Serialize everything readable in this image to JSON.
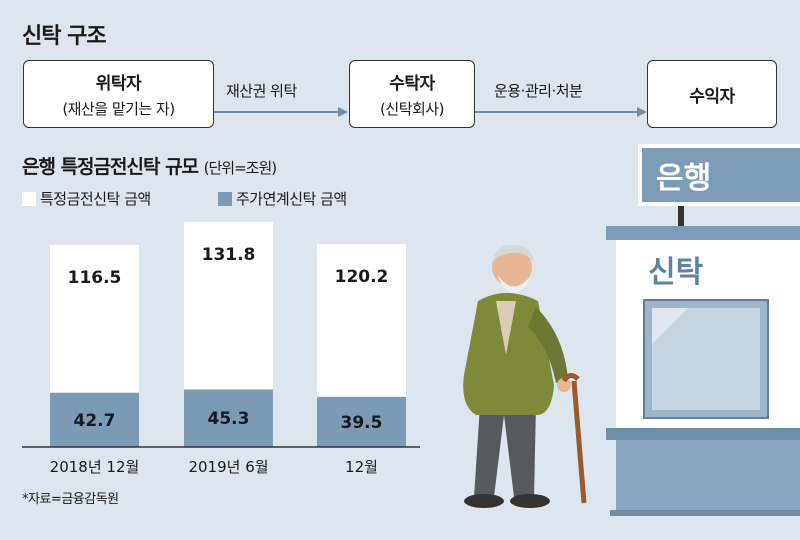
{
  "title": "신탁 구조",
  "flow": {
    "boxes": [
      {
        "main": "위탁자",
        "sub": "(재산을 맡기는 자)"
      },
      {
        "main": "수탁자",
        "sub": "(신탁회사)"
      },
      {
        "main": "수익자",
        "sub": ""
      }
    ],
    "arrows": [
      "재산권 위탁",
      "운용·관리·처분"
    ]
  },
  "chart_title": "은행 특정금전신탁 규모",
  "chart_unit": "(단위=조원)",
  "legend": [
    {
      "label": "특정금전신탁 금액",
      "color": "#ffffff"
    },
    {
      "label": "주가연계신탁 금액",
      "color": "#7b9ab5"
    }
  ],
  "chart_data": {
    "type": "bar",
    "stacked": true,
    "categories": [
      "2018년 12월",
      "2019년 6월",
      "12월"
    ],
    "series": [
      {
        "name": "주가연계신탁 금액",
        "values": [
          42.7,
          45.3,
          39.5
        ],
        "color": "#7b9ab5"
      },
      {
        "name": "특정금전신탁 금액",
        "values": [
          116.5,
          131.8,
          120.2
        ],
        "color": "#ffffff"
      }
    ],
    "title": "은행 특정금전신탁 규모",
    "ylabel": "(단위=조원)",
    "xlabel": "",
    "legend_position": "top-left",
    "grid": false
  },
  "source": "*자료=금융감독원",
  "bank_sign": "은행",
  "trust_sign": "신탁",
  "colors": {
    "background": "#dde6ee",
    "accent": "#7b9ab5",
    "sign": "#7d9cb8"
  }
}
